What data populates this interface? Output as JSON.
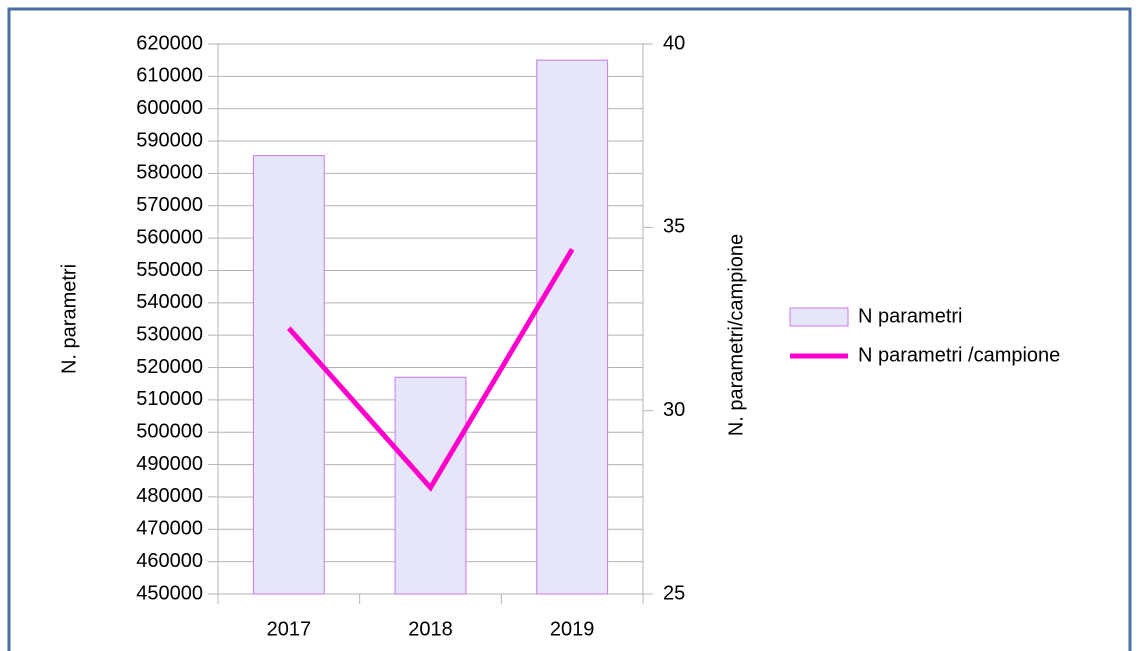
{
  "chart_data": {
    "type": "bar+line",
    "categories": [
      "2017",
      "2018",
      "2019"
    ],
    "series": [
      {
        "name": "N parametri",
        "type": "bar",
        "color": "#e6e6fa",
        "values": [
          585500,
          517000,
          615000
        ]
      },
      {
        "name": "N parametri /campione",
        "type": "line",
        "axis": "y2",
        "color": "#ff00cc",
        "values": [
          32.25,
          27.9,
          34.4
        ]
      }
    ],
    "ylabel": "N. parametri",
    "y2label": "N. parametri/campione",
    "ylim": [
      450000,
      620000
    ],
    "yticks": [
      450000,
      460000,
      470000,
      480000,
      490000,
      500000,
      510000,
      520000,
      530000,
      540000,
      550000,
      560000,
      570000,
      580000,
      590000,
      600000,
      610000,
      620000
    ],
    "y2lim": [
      25,
      40
    ],
    "y2ticks": [
      25,
      30,
      35,
      40
    ],
    "grid": true,
    "legend": "right"
  }
}
